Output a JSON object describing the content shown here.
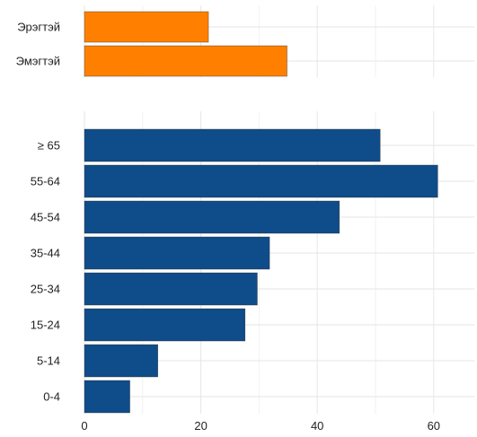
{
  "chart_data": [
    {
      "type": "bar",
      "orientation": "horizontal",
      "categories": [
        "Эрэгтэй",
        "Эмэгтэй"
      ],
      "values": [
        21.3,
        34.8
      ],
      "color": "#ff8000",
      "xlim": [
        0,
        67
      ],
      "grid": true,
      "legend": "none"
    },
    {
      "type": "bar",
      "orientation": "horizontal",
      "categories": [
        "≥ 65",
        "55-64",
        "45-54",
        "35-44",
        "25-34",
        "15-24",
        "5-14",
        "0-4"
      ],
      "values": [
        50.8,
        60.7,
        43.8,
        31.8,
        29.7,
        27.6,
        12.6,
        7.8
      ],
      "color": "#0f4c8a",
      "xlim": [
        0,
        67
      ],
      "xticks": [
        0,
        20,
        40,
        60
      ],
      "grid": true,
      "legend": "none"
    }
  ]
}
